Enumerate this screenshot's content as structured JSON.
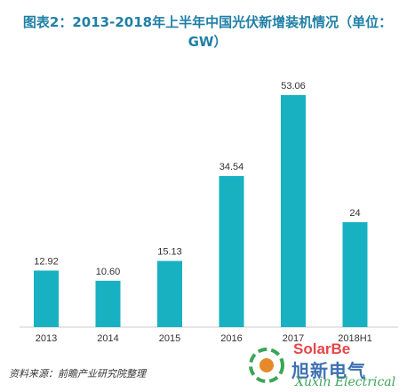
{
  "title_line1": "图表2：2013-2018年上半年中国光伏新增装机情况（单位：",
  "title_line2": "GW）",
  "source_note": "资料来源：前瞻产业研究院整理",
  "watermark": {
    "solar": "SolarBe",
    "cn": "旭新电气",
    "en": "Xuxin Electrical"
  },
  "colors": {
    "bar": "#17b1c2",
    "title": "#1f7fa6",
    "axis": "#cccccc",
    "label": "#333333"
  },
  "chart_data": {
    "type": "bar",
    "categories": [
      "2013",
      "2014",
      "2015",
      "2016",
      "2017",
      "2018H1"
    ],
    "values": [
      12.92,
      10.6,
      15.13,
      34.54,
      53.06,
      24
    ],
    "value_labels": [
      "12.92",
      "10.60",
      "15.13",
      "34.54",
      "53.06",
      "24"
    ],
    "ylim": [
      0,
      60
    ],
    "grid": false,
    "legend": "none"
  }
}
